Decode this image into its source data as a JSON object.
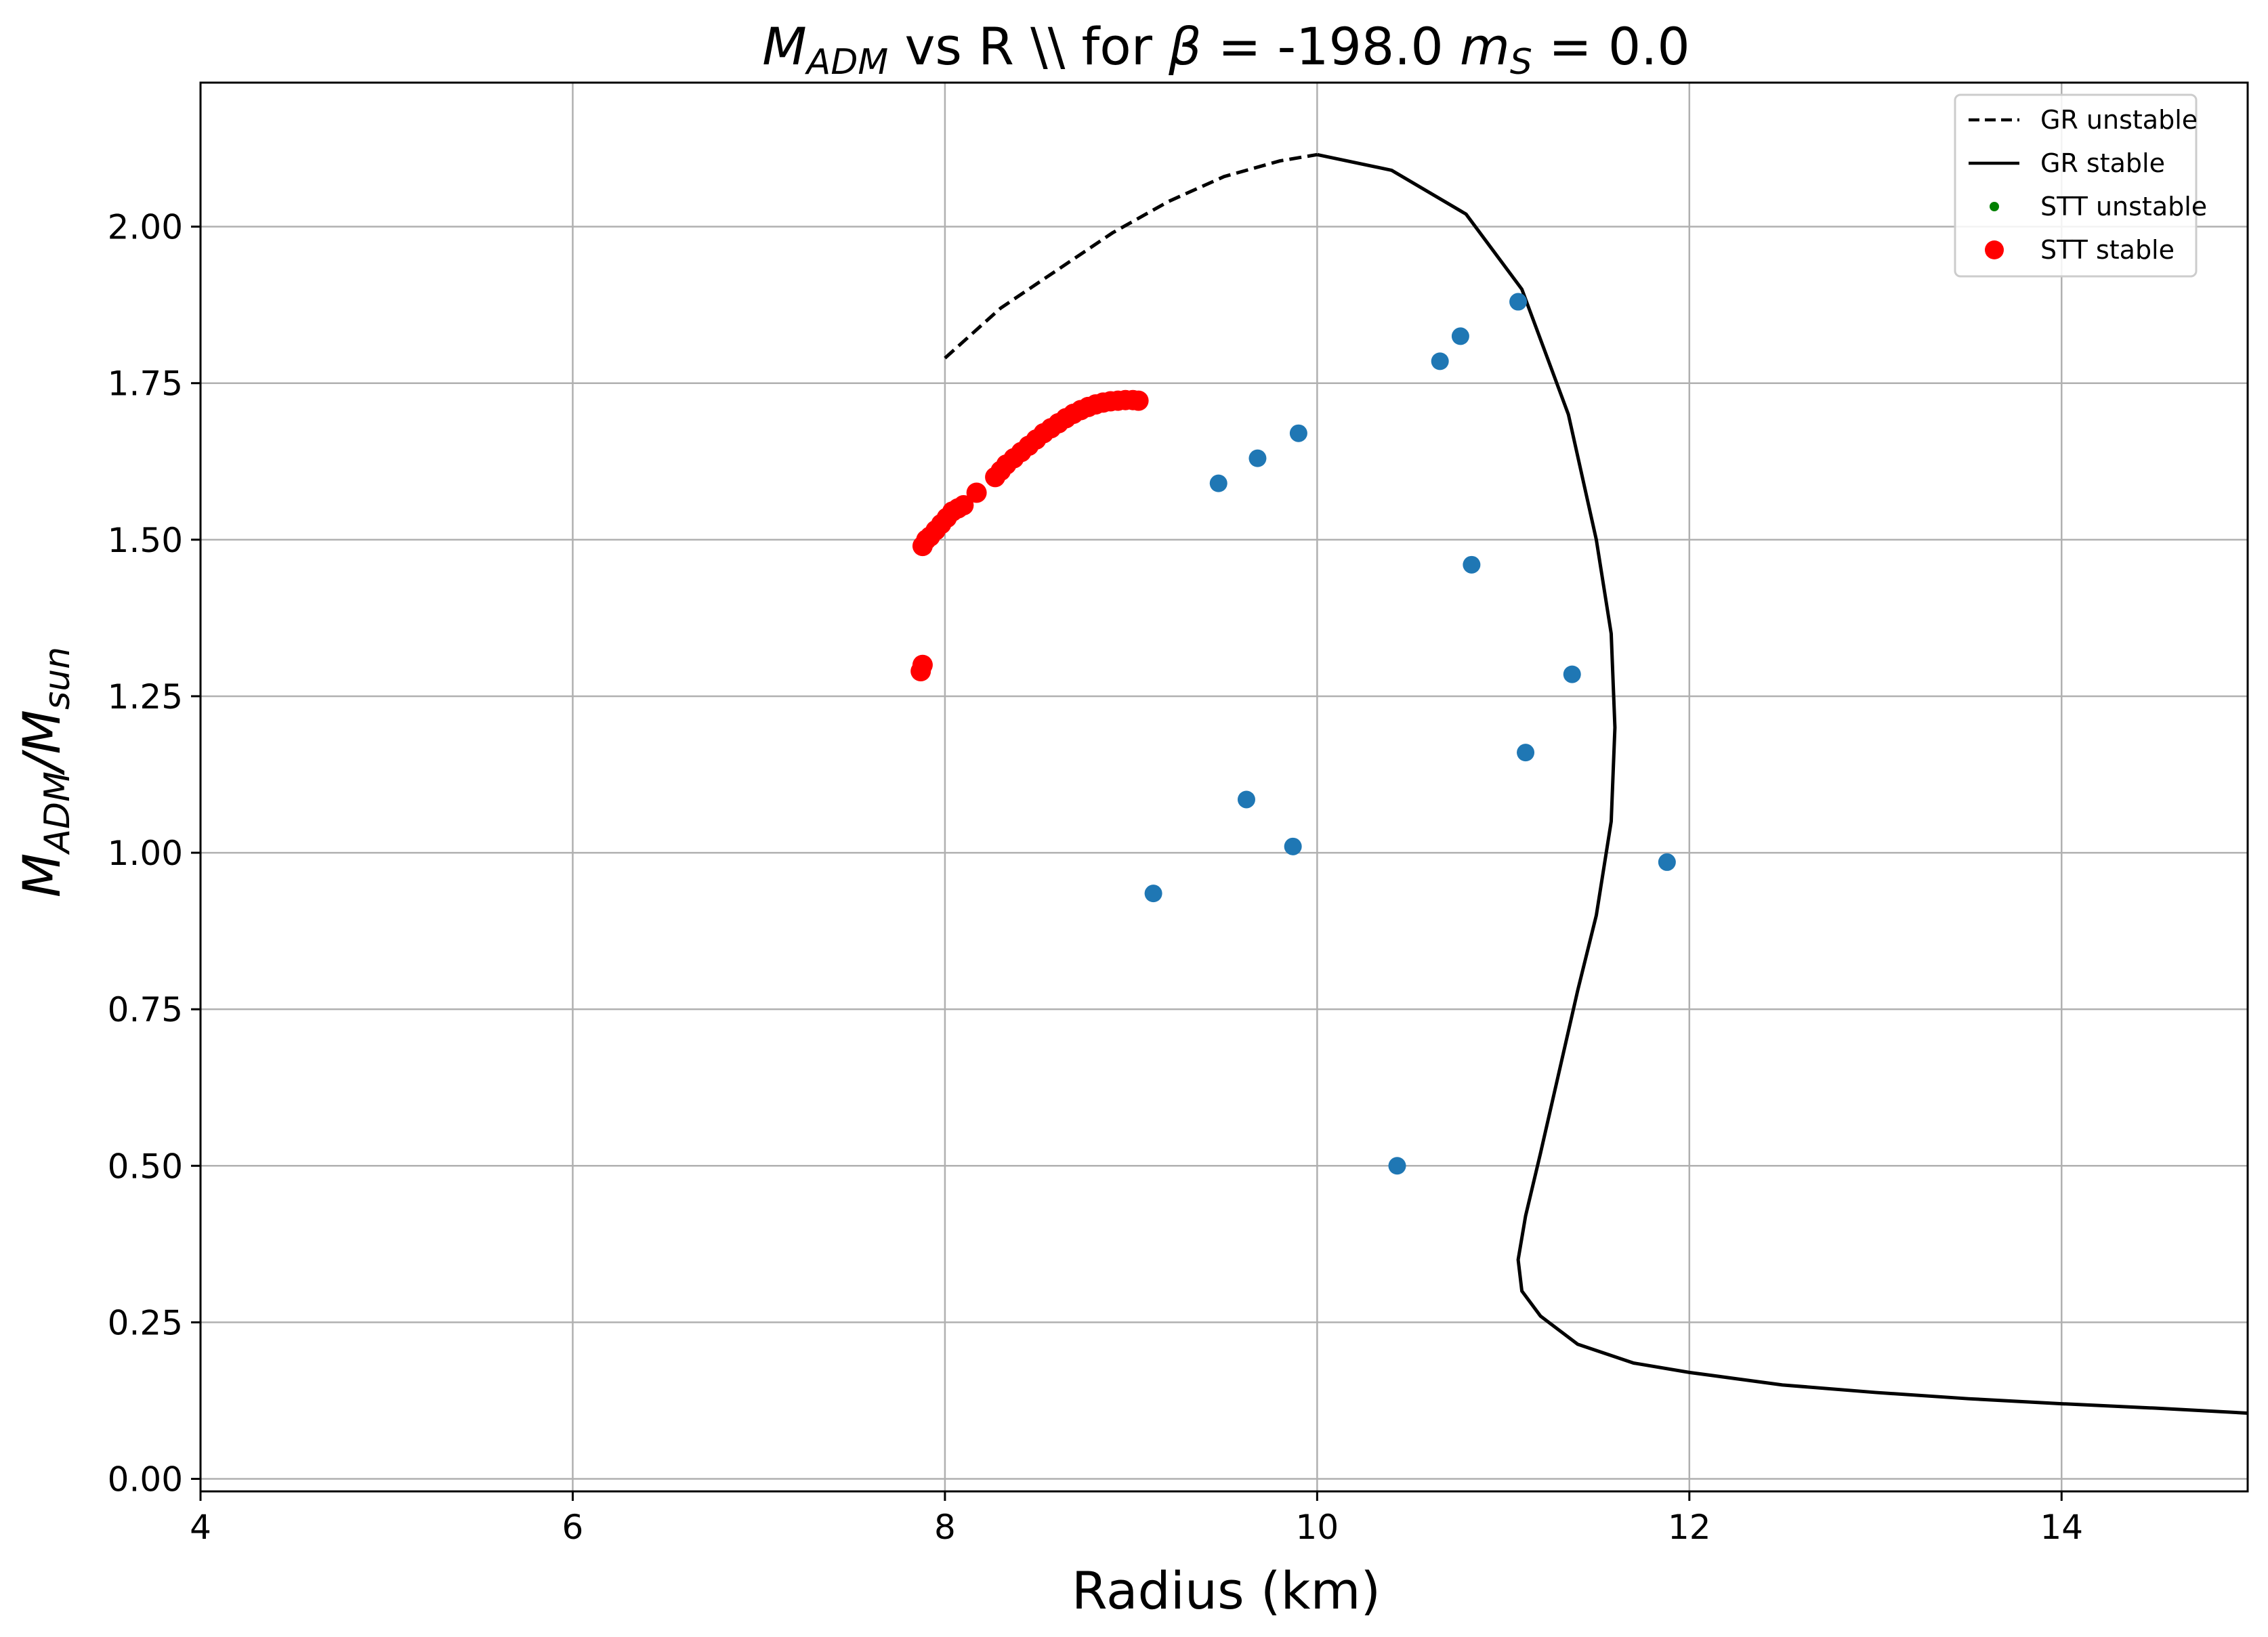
{
  "chart_data": {
    "type": "scatter",
    "title": {
      "pre_sym": "M",
      "pre_sub": "ADM",
      "middle": " vs R \\\\ for ",
      "beta_sym": "β",
      "beta_eq": " = -198.0 ",
      "ms_sym": "m",
      "ms_sub": "S",
      "ms_eq": " = 0.0"
    },
    "xlabel": "Radius (km)",
    "ylabel": {
      "sym": "M",
      "sub": "ADM",
      "slash": "/",
      "sym2": "M",
      "sub2": "sun"
    },
    "xlim": [
      4,
      15
    ],
    "ylim": [
      -0.02,
      2.23
    ],
    "x_ticks": [
      4,
      6,
      8,
      10,
      12,
      14
    ],
    "y_ticks": [
      0.0,
      0.25,
      0.5,
      0.75,
      1.0,
      1.25,
      1.5,
      1.75,
      2.0
    ],
    "x_tick_labels": [
      "4",
      "6",
      "8",
      "10",
      "12",
      "14"
    ],
    "y_tick_labels": [
      "0.00",
      "0.25",
      "0.50",
      "0.75",
      "1.00",
      "1.25",
      "1.50",
      "1.75",
      "2.00"
    ],
    "grid": true,
    "legend_position": "top-right",
    "legend": [
      {
        "label": "GR unstable",
        "kind": "line-dashed",
        "color": "#000000"
      },
      {
        "label": "GR stable",
        "kind": "line-solid",
        "color": "#000000"
      },
      {
        "label": "STT unstable",
        "kind": "marker-small",
        "color": "#008000"
      },
      {
        "label": "STT stable",
        "kind": "marker-large",
        "color": "#ff0000"
      }
    ],
    "series": [
      {
        "name": "GR unstable",
        "style": "dashed",
        "color": "#000000",
        "x": [
          8.0,
          8.3,
          8.6,
          8.9,
          9.2,
          9.5,
          9.8,
          10.0
        ],
        "y": [
          1.79,
          1.87,
          1.93,
          1.99,
          2.04,
          2.08,
          2.105,
          2.115
        ]
      },
      {
        "name": "GR stable",
        "style": "solid",
        "color": "#000000",
        "x": [
          10.0,
          10.4,
          10.8,
          11.1,
          11.35,
          11.5,
          11.58,
          11.6,
          11.58,
          11.5,
          11.4,
          11.3,
          11.2,
          11.12,
          11.08,
          11.1,
          11.2,
          11.4,
          11.7,
          12.0,
          12.5,
          13.0,
          13.5,
          14.0,
          14.5,
          15.0
        ],
        "y": [
          2.115,
          2.09,
          2.02,
          1.9,
          1.7,
          1.5,
          1.35,
          1.2,
          1.05,
          0.9,
          0.78,
          0.65,
          0.52,
          0.42,
          0.35,
          0.3,
          0.26,
          0.215,
          0.185,
          0.17,
          0.15,
          0.138,
          0.128,
          0.12,
          0.113,
          0.105
        ]
      },
      {
        "name": "STT stable",
        "style": "markers-red",
        "color": "#ff0000",
        "x": [
          7.87,
          7.88,
          7.88,
          7.9,
          7.92,
          7.95,
          7.98,
          8.01,
          8.04,
          8.07,
          8.1,
          8.17,
          8.27,
          8.3,
          8.33,
          8.37,
          8.41,
          8.45,
          8.49,
          8.53,
          8.57,
          8.61,
          8.65,
          8.69,
          8.73,
          8.77,
          8.81,
          8.85,
          8.89,
          8.93,
          8.97,
          9.01,
          9.04
        ],
        "y": [
          1.29,
          1.3,
          1.49,
          1.5,
          1.505,
          1.515,
          1.525,
          1.535,
          1.545,
          1.55,
          1.555,
          1.575,
          1.6,
          1.61,
          1.62,
          1.63,
          1.64,
          1.65,
          1.66,
          1.67,
          1.678,
          1.686,
          1.694,
          1.701,
          1.707,
          1.712,
          1.716,
          1.719,
          1.721,
          1.722,
          1.723,
          1.723,
          1.722
        ]
      },
      {
        "name": "",
        "style": "markers-blue",
        "color": "#1f77b4",
        "x": [
          9.12,
          9.47,
          9.62,
          9.68,
          9.87,
          9.9,
          10.43,
          10.66,
          10.77,
          10.83,
          11.08,
          11.12,
          11.37,
          11.88
        ],
        "y": [
          0.935,
          1.59,
          1.085,
          1.63,
          1.01,
          1.67,
          0.5,
          1.785,
          1.825,
          1.46,
          1.88,
          1.16,
          1.285,
          0.985
        ]
      }
    ]
  }
}
